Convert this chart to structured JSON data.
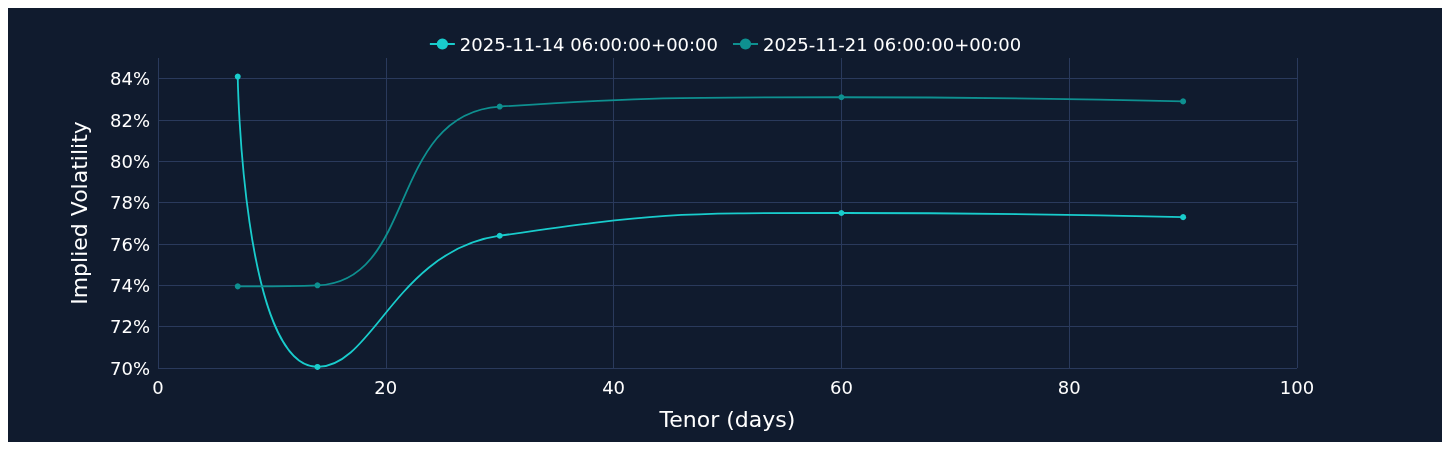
{
  "chart_data": {
    "type": "line",
    "xlabel": "Tenor (days)",
    "ylabel": "Implied Volatility",
    "x": [
      7,
      14,
      30,
      60,
      90
    ],
    "series": [
      {
        "name": "2025-11-14 06:00:00+00:00",
        "color": "#19cccc",
        "values": [
          84.1,
          70.05,
          76.4,
          77.5,
          77.3
        ]
      },
      {
        "name": "2025-11-21 06:00:00+00:00",
        "color": "#0e9090",
        "values": [
          73.95,
          74.0,
          82.65,
          83.1,
          82.9
        ]
      }
    ],
    "xlim": [
      0,
      100
    ],
    "xticks": [
      0,
      20,
      40,
      60,
      80,
      100
    ],
    "ylim": [
      70,
      85
    ],
    "yticks": [
      {
        "value": 70,
        "label": "70%"
      },
      {
        "value": 72,
        "label": "72%"
      },
      {
        "value": 74,
        "label": "74%"
      },
      {
        "value": 76,
        "label": "76%"
      },
      {
        "value": 78,
        "label": "78%"
      },
      {
        "value": 80,
        "label": "80%"
      },
      {
        "value": 82,
        "label": "82%"
      },
      {
        "value": 84,
        "label": "84%"
      }
    ],
    "grid": true,
    "legend": "top",
    "marker": "circle",
    "line_style": "solid"
  }
}
